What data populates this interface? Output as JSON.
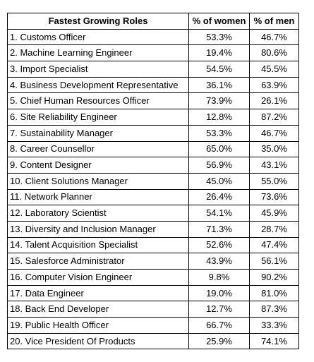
{
  "table": {
    "headers": [
      "Fastest Growing Roles",
      "% of women",
      "% of men"
    ],
    "rows": [
      {
        "role": "1. Customs Officer",
        "women": "53.3%",
        "men": "46.7%"
      },
      {
        "role": "2. Machine Learning Engineer",
        "women": "19.4%",
        "men": "80.6%"
      },
      {
        "role": "3. Import Specialist",
        "women": "54.5%",
        "men": "45.5%"
      },
      {
        "role": "4. Business Development Representative",
        "women": "36.1%",
        "men": "63.9%"
      },
      {
        "role": "5. Chief Human Resources Officer",
        "women": "73.9%",
        "men": "26.1%"
      },
      {
        "role": "6. Site Reliability Engineer",
        "women": "12.8%",
        "men": "87.2%"
      },
      {
        "role": "7. Sustainability Manager",
        "women": "53.3%",
        "men": "46.7%"
      },
      {
        "role": "8. Career Counsellor",
        "women": "65.0%",
        "men": "35.0%"
      },
      {
        "role": "9. Content Designer",
        "women": "56.9%",
        "men": "43.1%"
      },
      {
        "role": "10. Client Solutions Manager",
        "women": "45.0%",
        "men": "55.0%"
      },
      {
        "role": "11. Network Planner",
        "women": "26.4%",
        "men": "73.6%"
      },
      {
        "role": "12. Laboratory Scientist",
        "women": "54.1%",
        "men": "45.9%"
      },
      {
        "role": "13. Diversity and Inclusion Manager",
        "women": "71.3%",
        "men": "28.7%"
      },
      {
        "role": "14. Talent Acquisition Specialist",
        "women": "52.6%",
        "men": "47.4%"
      },
      {
        "role": "15. Salesforce Administrator",
        "women": "43.9%",
        "men": "56.1%"
      },
      {
        "role": "16. Computer Vision Engineer",
        "women": "9.8%",
        "men": "90.2%"
      },
      {
        "role": "17. Data Engineer",
        "women": "19.0%",
        "men": "81.0%"
      },
      {
        "role": "18. Back End Developer",
        "women": "12.7%",
        "men": "87.3%"
      },
      {
        "role": "19. Public Health Officer",
        "women": "66.7%",
        "men": "33.3%"
      },
      {
        "role": "20. Vice President Of Products",
        "women": "25.9%",
        "men": "74.1%"
      }
    ]
  }
}
